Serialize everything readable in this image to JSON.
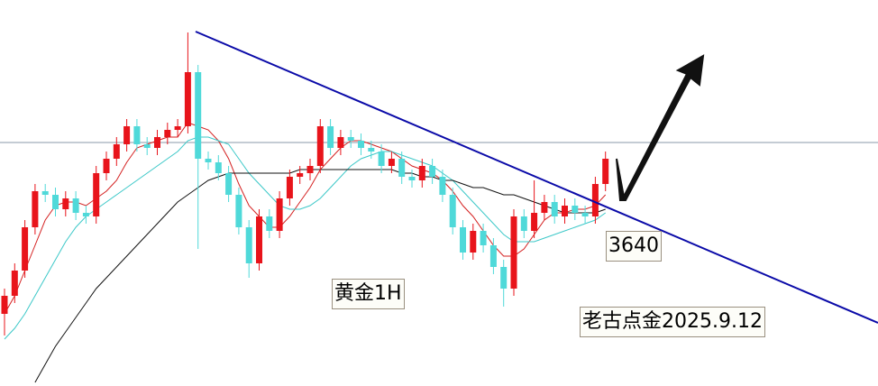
{
  "chart_data": {
    "type": "candlestick",
    "ylim": [
      3592,
      3699
    ],
    "up_color": "#e8141b",
    "down_color": "#4fd9d9",
    "open": [
      3612,
      3617,
      3624,
      3636,
      3646,
      3645,
      3641,
      3644,
      3640,
      3639,
      3651,
      3655,
      3659,
      3664,
      3659,
      3658,
      3661,
      3663,
      3664,
      3679,
      3655,
      3654,
      3651,
      3645,
      3636,
      3626,
      3639,
      3635,
      3644,
      3650,
      3651,
      3653,
      3664,
      3658,
      3661,
      3660,
      3658,
      3657,
      3653,
      3655,
      3650,
      3649,
      3653,
      3650,
      3645,
      3636,
      3629,
      3635,
      3631,
      3625,
      3619,
      3639,
      3635,
      3640,
      3643,
      3639,
      3642,
      3640,
      3639,
      3648
    ],
    "high": [
      3619,
      3626,
      3638,
      3648,
      3648,
      3647,
      3646,
      3646,
      3642,
      3653,
      3657,
      3661,
      3666,
      3666,
      3661,
      3663,
      3665,
      3666,
      3690,
      3681,
      3657,
      3656,
      3653,
      3647,
      3638,
      3641,
      3641,
      3646,
      3652,
      3653,
      3655,
      3666,
      3666,
      3663,
      3663,
      3662,
      3660,
      3659,
      3657,
      3657,
      3652,
      3655,
      3655,
      3652,
      3647,
      3638,
      3637,
      3637,
      3633,
      3627,
      3641,
      3641,
      3649,
      3645,
      3645,
      3644,
      3644,
      3642,
      3650,
      3657
    ],
    "low": [
      3606,
      3615,
      3622,
      3634,
      3643,
      3639,
      3639,
      3638,
      3637,
      3637,
      3649,
      3653,
      3657,
      3657,
      3656,
      3656,
      3659,
      3661,
      3662,
      3630,
      3652,
      3649,
      3643,
      3634,
      3622,
      3624,
      3633,
      3633,
      3642,
      3648,
      3649,
      3651,
      3656,
      3656,
      3658,
      3656,
      3655,
      3651,
      3651,
      3648,
      3647,
      3647,
      3648,
      3643,
      3634,
      3627,
      3627,
      3629,
      3623,
      3614,
      3617,
      3633,
      3633,
      3638,
      3637,
      3637,
      3638,
      3637,
      3637,
      3646
    ],
    "close": [
      3617,
      3624,
      3636,
      3646,
      3645,
      3641,
      3644,
      3640,
      3639,
      3651,
      3655,
      3659,
      3664,
      3659,
      3658,
      3661,
      3663,
      3664,
      3679,
      3655,
      3654,
      3651,
      3645,
      3636,
      3626,
      3639,
      3635,
      3644,
      3650,
      3651,
      3653,
      3664,
      3658,
      3661,
      3660,
      3658,
      3657,
      3653,
      3655,
      3650,
      3649,
      3653,
      3650,
      3645,
      3636,
      3629,
      3635,
      3631,
      3625,
      3619,
      3639,
      3635,
      3640,
      3643,
      3639,
      3642,
      3640,
      3639,
      3648,
      3655
    ],
    "series": [
      {
        "color": "#d42020",
        "values": [
          3612,
          3617,
          3624,
          3631,
          3638,
          3642,
          3643,
          3643,
          3642,
          3644,
          3646,
          3649,
          3654,
          3658,
          3659,
          3660,
          3661,
          3661,
          3665,
          3664,
          3663,
          3660,
          3655,
          3648,
          3642,
          3639,
          3636,
          3636,
          3639,
          3643,
          3647,
          3652,
          3655,
          3658,
          3660,
          3660,
          3659,
          3658,
          3657,
          3655,
          3653,
          3652,
          3651,
          3649,
          3646,
          3642,
          3639,
          3635,
          3631,
          3628,
          3628,
          3630,
          3634,
          3638,
          3640,
          3640,
          3641,
          3641,
          3642,
          3645
        ]
      },
      {
        "color": "#3cc8c8",
        "values": [
          3605,
          3608,
          3612,
          3617,
          3622,
          3627,
          3632,
          3636,
          3639,
          3641,
          3643,
          3645,
          3647,
          3649,
          3651,
          3653,
          3655,
          3657,
          3660,
          3661,
          3661,
          3660,
          3659,
          3655,
          3651,
          3648,
          3645,
          3642,
          3641,
          3641,
          3642,
          3644,
          3647,
          3650,
          3653,
          3655,
          3656,
          3657,
          3657,
          3656,
          3655,
          3654,
          3653,
          3651,
          3649,
          3646,
          3643,
          3640,
          3637,
          3634,
          3632,
          3632,
          3632,
          3633,
          3634,
          3635,
          3636,
          3637,
          3638,
          3640
        ]
      },
      {
        "color": "#111111",
        "values": [
          null,
          null,
          null,
          3593,
          3598,
          3603,
          3607,
          3611,
          3615,
          3619,
          3622,
          3625,
          3628,
          3631,
          3634,
          3637,
          3640,
          3643,
          3645,
          3647,
          3649,
          3650,
          3651,
          3651,
          3651,
          3651,
          3651,
          3651,
          3651,
          3652,
          3652,
          3652,
          3652,
          3652,
          3652,
          3652,
          3652,
          3652,
          3652,
          3651,
          3651,
          3650,
          3650,
          3649,
          3649,
          3648,
          3647,
          3647,
          3646,
          3645,
          3645,
          3644,
          3643,
          3642,
          3641,
          3640,
          3640,
          3640,
          3640,
          3641
        ]
      }
    ],
    "annotations": [
      "黄金1H",
      "3640",
      "老古点金2025.9.12"
    ]
  }
}
